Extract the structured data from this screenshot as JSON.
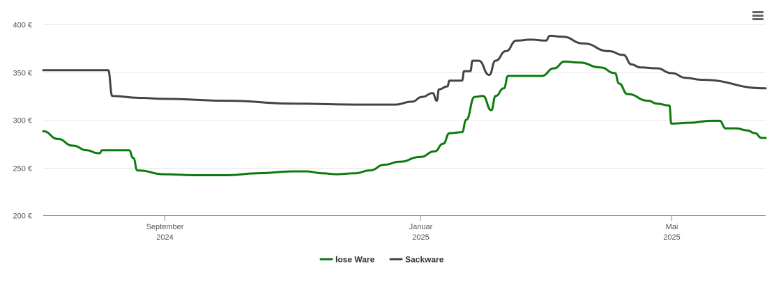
{
  "menu": {
    "icon": "hamburger-menu-icon"
  },
  "chart_data": {
    "type": "line",
    "title": "",
    "xlabel": "",
    "ylabel": "",
    "ylim": [
      200,
      400
    ],
    "yticks": [
      {
        "value": 200,
        "label": "200 €"
      },
      {
        "value": 250,
        "label": "250 €"
      },
      {
        "value": 300,
        "label": "300 €"
      },
      {
        "value": 350,
        "label": "350 €"
      },
      {
        "value": 400,
        "label": "400 €"
      }
    ],
    "xlim": [
      "2024-07-05",
      "2025-06-15"
    ],
    "xticks": [
      {
        "date": "2024-09-01",
        "month": "September",
        "year": "2024"
      },
      {
        "date": "2025-01-01",
        "month": "Januar",
        "year": "2025"
      },
      {
        "date": "2025-05-01",
        "month": "Mai",
        "year": "2025"
      }
    ],
    "grid": true,
    "legend_position": "bottom-center",
    "series": [
      {
        "name": "lose Ware",
        "color": "#0c7a0c",
        "points": [
          [
            "2024-07-05",
            288
          ],
          [
            "2024-07-12",
            280
          ],
          [
            "2024-07-19",
            273
          ],
          [
            "2024-07-26",
            268
          ],
          [
            "2024-07-31",
            265
          ],
          [
            "2024-08-01",
            265
          ],
          [
            "2024-08-02",
            268
          ],
          [
            "2024-08-15",
            268
          ],
          [
            "2024-08-17",
            260
          ],
          [
            "2024-08-19",
            247
          ],
          [
            "2024-09-01",
            243
          ],
          [
            "2024-09-15",
            242
          ],
          [
            "2024-10-01",
            242
          ],
          [
            "2024-10-15",
            244
          ],
          [
            "2024-11-01",
            246
          ],
          [
            "2024-11-08",
            246
          ],
          [
            "2024-11-15",
            244
          ],
          [
            "2024-11-22",
            243
          ],
          [
            "2024-12-01",
            244
          ],
          [
            "2024-12-08",
            247
          ],
          [
            "2024-12-15",
            253
          ],
          [
            "2024-12-22",
            256
          ],
          [
            "2025-01-01",
            261
          ],
          [
            "2025-01-08",
            267
          ],
          [
            "2025-01-12",
            275
          ],
          [
            "2025-01-15",
            286
          ],
          [
            "2025-01-21",
            287
          ],
          [
            "2025-01-23",
            300
          ],
          [
            "2025-01-27",
            324
          ],
          [
            "2025-01-31",
            325
          ],
          [
            "2025-02-04",
            310
          ],
          [
            "2025-02-06",
            325
          ],
          [
            "2025-02-10",
            333
          ],
          [
            "2025-02-12",
            346
          ],
          [
            "2025-02-28",
            346
          ],
          [
            "2025-03-06",
            354
          ],
          [
            "2025-03-11",
            361
          ],
          [
            "2025-03-18",
            360
          ],
          [
            "2025-03-28",
            355
          ],
          [
            "2025-04-04",
            349
          ],
          [
            "2025-04-06",
            338
          ],
          [
            "2025-04-10",
            327
          ],
          [
            "2025-04-20",
            320
          ],
          [
            "2025-04-24",
            317
          ],
          [
            "2025-04-30",
            315
          ],
          [
            "2025-05-01",
            296
          ],
          [
            "2025-05-10",
            297
          ],
          [
            "2025-05-20",
            299
          ],
          [
            "2025-05-24",
            299
          ],
          [
            "2025-05-27",
            291
          ],
          [
            "2025-06-01",
            291
          ],
          [
            "2025-06-06",
            289
          ],
          [
            "2025-06-10",
            286
          ],
          [
            "2025-06-13",
            281
          ],
          [
            "2025-06-15",
            281
          ]
        ]
      },
      {
        "name": "Sackware",
        "color": "#444444",
        "points": [
          [
            "2024-07-05",
            352
          ],
          [
            "2024-07-20",
            352
          ],
          [
            "2024-08-01",
            352
          ],
          [
            "2024-08-05",
            352
          ],
          [
            "2024-08-07",
            325
          ],
          [
            "2024-08-20",
            323
          ],
          [
            "2024-09-01",
            322
          ],
          [
            "2024-10-01",
            320
          ],
          [
            "2024-11-01",
            317
          ],
          [
            "2024-12-01",
            316
          ],
          [
            "2024-12-20",
            316
          ],
          [
            "2024-12-28",
            319
          ],
          [
            "2025-01-02",
            324
          ],
          [
            "2025-01-07",
            328
          ],
          [
            "2025-01-09",
            320
          ],
          [
            "2025-01-10",
            332
          ],
          [
            "2025-01-14",
            335
          ],
          [
            "2025-01-15",
            341
          ],
          [
            "2025-01-21",
            341
          ],
          [
            "2025-01-22",
            351
          ],
          [
            "2025-01-25",
            351
          ],
          [
            "2025-01-26",
            362
          ],
          [
            "2025-01-29",
            362
          ],
          [
            "2025-02-03",
            347
          ],
          [
            "2025-02-06",
            362
          ],
          [
            "2025-02-11",
            372
          ],
          [
            "2025-02-16",
            383
          ],
          [
            "2025-02-23",
            384
          ],
          [
            "2025-03-02",
            383
          ],
          [
            "2025-03-04",
            388
          ],
          [
            "2025-03-10",
            387
          ],
          [
            "2025-03-20",
            380
          ],
          [
            "2025-04-01",
            372
          ],
          [
            "2025-04-08",
            368
          ],
          [
            "2025-04-12",
            358
          ],
          [
            "2025-04-16",
            355
          ],
          [
            "2025-04-24",
            354
          ],
          [
            "2025-05-01",
            349
          ],
          [
            "2025-05-08",
            344
          ],
          [
            "2025-05-15",
            342
          ],
          [
            "2025-06-15",
            333
          ]
        ]
      }
    ]
  }
}
